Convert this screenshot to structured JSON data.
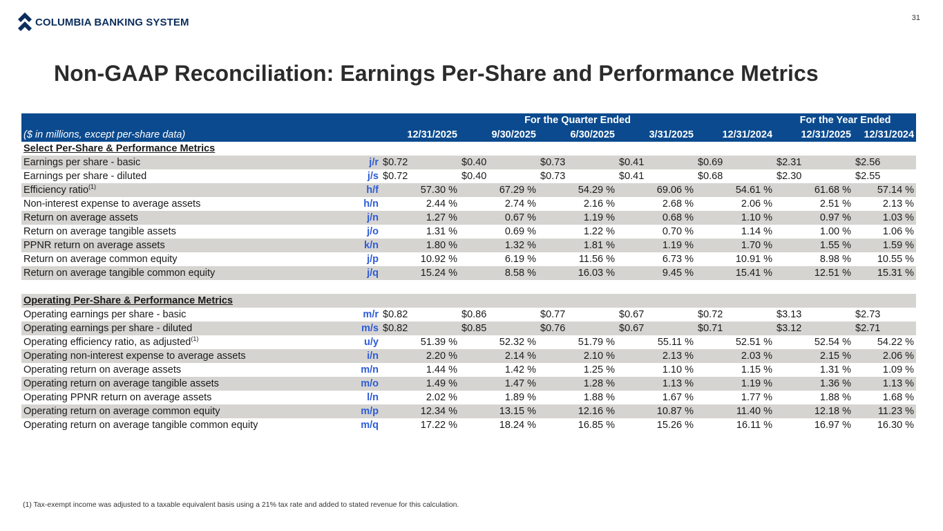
{
  "header": {
    "logo_text": "COLUMBIA BANKING SYSTEM",
    "page_number": "31",
    "brand_color": "#0b2d5c",
    "table_header_color": "#0b4a8e",
    "ref_color": "#2e5bd6"
  },
  "title": "Non-GAAP Reconciliation: Earnings Per-Share and Performance Metrics",
  "table": {
    "group_quarter": "For the Quarter Ended",
    "group_year": "For the Year Ended",
    "units_label": "($ in millions, except per-share data)",
    "columns": [
      "12/31/2025",
      "9/30/2025",
      "6/30/2025",
      "3/31/2025",
      "12/31/2024",
      "12/31/2025",
      "12/31/2024"
    ],
    "section1_title": "Select Per-Share & Performance Metrics",
    "section1_rows": [
      {
        "label": "Earnings per share - basic",
        "sup": "",
        "ref": "j/r",
        "values": [
          "$0.72",
          "$0.40",
          "$0.73",
          "$0.41",
          "$0.69",
          "$2.31",
          "$2.56"
        ]
      },
      {
        "label": "Earnings per share - diluted",
        "sup": "",
        "ref": "j/s",
        "values": [
          "$0.72",
          "$0.40",
          "$0.73",
          "$0.41",
          "$0.68",
          "$2.30",
          "$2.55"
        ]
      },
      {
        "label": "Efficiency ratio",
        "sup": "(1)",
        "ref": "h/f",
        "values": [
          "57.30 %",
          "67.29 %",
          "54.29 %",
          "69.06 %",
          "54.61 %",
          "61.68 %",
          "57.14 %"
        ]
      },
      {
        "label": "Non-interest expense to average assets",
        "sup": "",
        "ref": "h/n",
        "values": [
          "2.44 %",
          "2.74 %",
          "2.16 %",
          "2.68 %",
          "2.06 %",
          "2.51 %",
          "2.13 %"
        ]
      },
      {
        "label": "Return on average assets",
        "sup": "",
        "ref": "j/n",
        "values": [
          "1.27 %",
          "0.67 %",
          "1.19 %",
          "0.68 %",
          "1.10 %",
          "0.97 %",
          "1.03 %"
        ]
      },
      {
        "label": "Return on average tangible assets",
        "sup": "",
        "ref": "j/o",
        "values": [
          "1.31 %",
          "0.69 %",
          "1.22 %",
          "0.70 %",
          "1.14 %",
          "1.00 %",
          "1.06 %"
        ]
      },
      {
        "label": "PPNR return on average assets",
        "sup": "",
        "ref": "k/n",
        "values": [
          "1.80 %",
          "1.32 %",
          "1.81 %",
          "1.19 %",
          "1.70 %",
          "1.55 %",
          "1.59 %"
        ]
      },
      {
        "label": "Return on average common equity",
        "sup": "",
        "ref": "j/p",
        "values": [
          "10.92 %",
          "6.19 %",
          "11.56 %",
          "6.73 %",
          "10.91 %",
          "8.98 %",
          "10.55 %"
        ]
      },
      {
        "label": "Return on average tangible common equity",
        "sup": "",
        "ref": "j/q",
        "values": [
          "15.24 %",
          "8.58 %",
          "16.03 %",
          "9.45 %",
          "15.41 %",
          "12.51 %",
          "15.31 %"
        ]
      }
    ],
    "section2_title": "Operating Per-Share & Performance Metrics",
    "section2_rows": [
      {
        "label": "Operating earnings per share - basic",
        "sup": "",
        "ref": "m/r",
        "values": [
          "$0.82",
          "$0.86",
          "$0.77",
          "$0.67",
          "$0.72",
          "$3.13",
          "$2.73"
        ]
      },
      {
        "label": "Operating earnings per share - diluted",
        "sup": "",
        "ref": "m/s",
        "values": [
          "$0.82",
          "$0.85",
          "$0.76",
          "$0.67",
          "$0.71",
          "$3.12",
          "$2.71"
        ]
      },
      {
        "label": "Operating efficiency ratio, as adjusted",
        "sup": "(1)",
        "ref": "u/y",
        "values": [
          "51.39 %",
          "52.32 %",
          "51.79 %",
          "55.11 %",
          "52.51 %",
          "52.54 %",
          "54.22 %"
        ]
      },
      {
        "label": "Operating non-interest expense to average assets",
        "sup": "",
        "ref": "i/n",
        "values": [
          "2.20 %",
          "2.14 %",
          "2.10 %",
          "2.13 %",
          "2.03 %",
          "2.15 %",
          "2.06 %"
        ]
      },
      {
        "label": "Operating return on average assets",
        "sup": "",
        "ref": "m/n",
        "values": [
          "1.44 %",
          "1.42 %",
          "1.25 %",
          "1.10 %",
          "1.15 %",
          "1.31 %",
          "1.09 %"
        ]
      },
      {
        "label": "Operating return on average tangible assets",
        "sup": "",
        "ref": "m/o",
        "values": [
          "1.49 %",
          "1.47 %",
          "1.28 %",
          "1.13 %",
          "1.19 %",
          "1.36 %",
          "1.13 %"
        ]
      },
      {
        "label": "Operating PPNR return on average assets",
        "sup": "",
        "ref": "l/n",
        "values": [
          "2.02 %",
          "1.89 %",
          "1.88 %",
          "1.67 %",
          "1.77 %",
          "1.88 %",
          "1.68 %"
        ]
      },
      {
        "label": "Operating return on average common equity",
        "sup": "",
        "ref": "m/p",
        "values": [
          "12.34 %",
          "13.15 %",
          "12.16 %",
          "10.87 %",
          "11.40 %",
          "12.18 %",
          "11.23 %"
        ]
      },
      {
        "label": "Operating return on average tangible common equity",
        "sup": "",
        "ref": "m/q",
        "values": [
          "17.22 %",
          "18.24 %",
          "16.85 %",
          "15.26 %",
          "16.11 %",
          "16.97 %",
          "16.30 %"
        ]
      }
    ]
  },
  "footnote": "(1)  Tax-exempt income was adjusted to a taxable equivalent basis using a 21% tax rate and added to stated revenue for this calculation."
}
